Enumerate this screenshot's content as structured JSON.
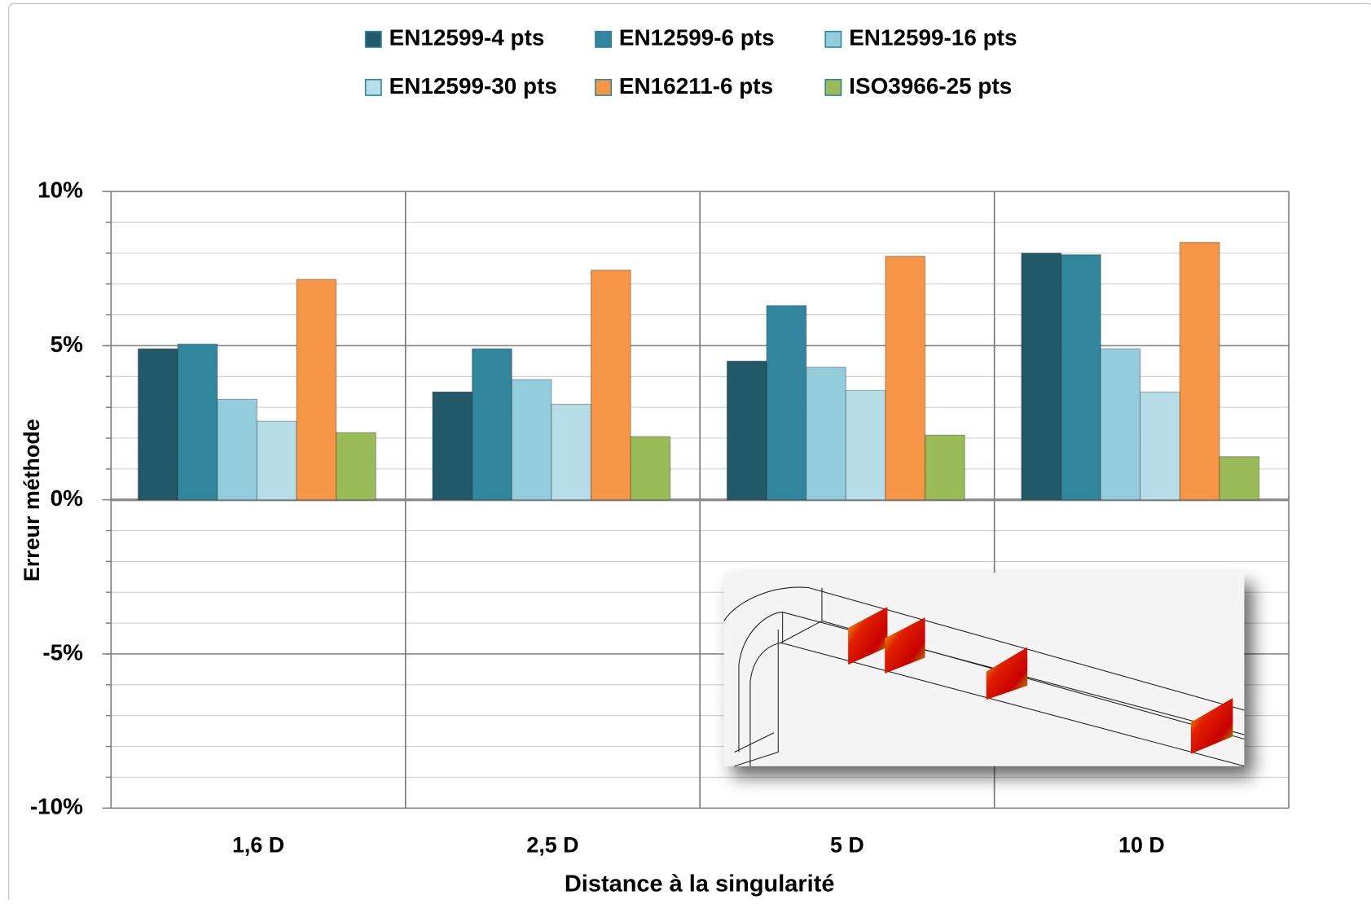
{
  "chart_data": {
    "type": "bar",
    "y_label": "Erreur méthode",
    "x_label": "Distance à la singularité",
    "categories": [
      "1,6 D",
      "2,5 D",
      "5 D",
      "10 D"
    ],
    "series": [
      {
        "name": "EN12599-4 pts",
        "color": "#215968",
        "values": [
          4.9,
          3.5,
          4.5,
          8.0
        ]
      },
      {
        "name": "EN12599-6 pts",
        "color": "#31859c",
        "values": [
          5.05,
          4.9,
          6.3,
          7.95
        ]
      },
      {
        "name": "EN12599-16 pts",
        "color": "#93cddd",
        "values": [
          3.26,
          3.9,
          4.3,
          4.9
        ]
      },
      {
        "name": "EN12599-30 pts",
        "color": "#b7dee8",
        "values": [
          2.55,
          3.1,
          3.55,
          3.5
        ]
      },
      {
        "name": "EN16211-6 pts",
        "color": "#f79646",
        "values": [
          7.15,
          7.45,
          7.9,
          8.35
        ]
      },
      {
        "name": "ISO3966-25 pts",
        "color": "#9bbb59",
        "values": [
          2.18,
          2.05,
          2.1,
          1.4
        ]
      }
    ],
    "ylim": [
      -10,
      10
    ],
    "yticks": [
      {
        "value": -10,
        "label": "-10%"
      },
      {
        "value": -5,
        "label": "-5%"
      },
      {
        "value": 0,
        "label": "0%"
      },
      {
        "value": 5,
        "label": "5%"
      },
      {
        "value": 10,
        "label": "10%"
      }
    ],
    "grid": true,
    "minor_grid_step": 1,
    "legend": "top"
  }
}
